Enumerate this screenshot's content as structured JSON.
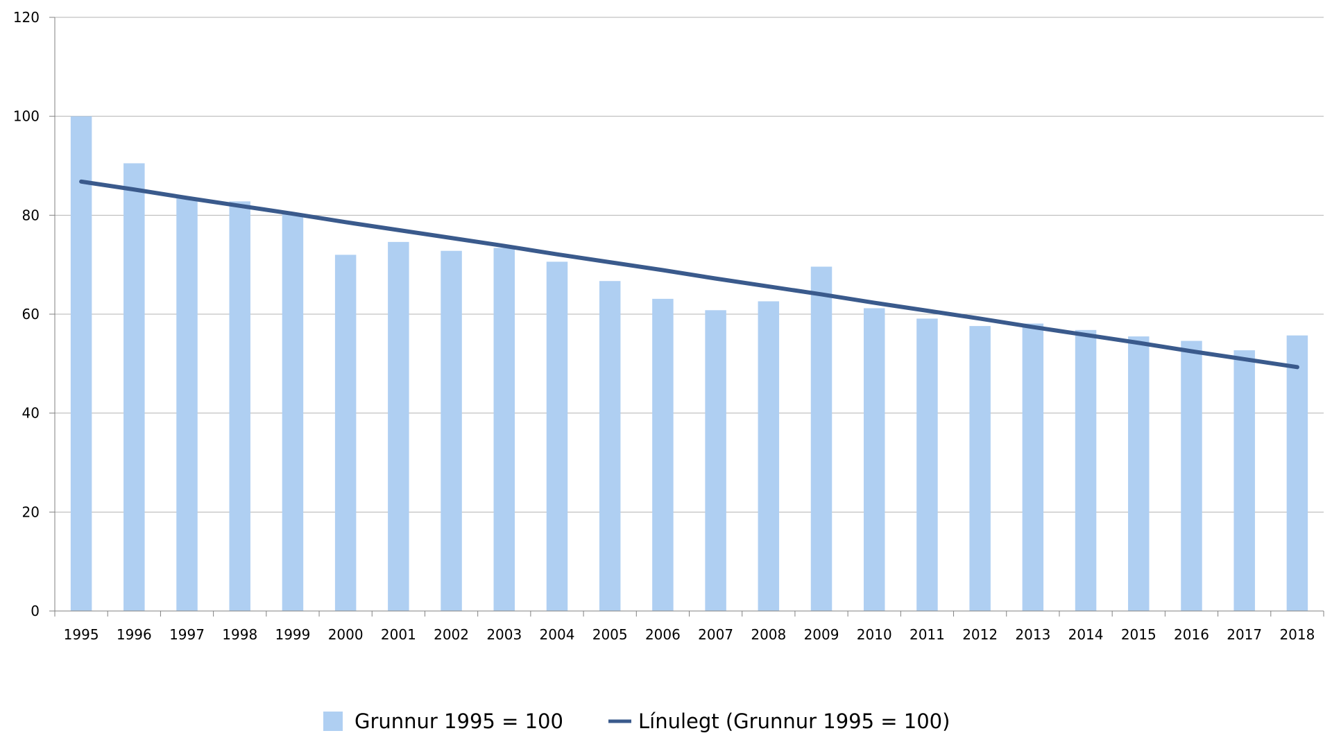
{
  "chart_data": {
    "type": "bar",
    "categories": [
      "1995",
      "1996",
      "1997",
      "1998",
      "1999",
      "2000",
      "2001",
      "2002",
      "2003",
      "2004",
      "2005",
      "2006",
      "2007",
      "2008",
      "2009",
      "2010",
      "2011",
      "2012",
      "2013",
      "2014",
      "2015",
      "2016",
      "2017",
      "2018"
    ],
    "series": [
      {
        "name": "Grunnur 1995 = 100",
        "type": "bar",
        "color": "#afcff2",
        "values": [
          100,
          90.5,
          83.5,
          82.8,
          80.2,
          72.0,
          74.6,
          72.8,
          73.4,
          70.6,
          66.7,
          63.1,
          60.8,
          62.6,
          69.6,
          61.2,
          59.1,
          57.6,
          58.1,
          56.8,
          55.5,
          54.6,
          52.7,
          55.7
        ]
      },
      {
        "name": "Línulegt (Grunnur 1995 = 100)",
        "type": "line",
        "color": "#3a5a8c",
        "values": [
          86.8,
          85.2,
          83.5,
          81.9,
          80.3,
          78.6,
          77.0,
          75.4,
          73.8,
          72.1,
          70.5,
          68.9,
          67.2,
          65.6,
          64.0,
          62.3,
          60.7,
          59.1,
          57.4,
          55.8,
          54.2,
          52.5,
          50.9,
          49.3
        ]
      }
    ],
    "ylim": [
      0,
      120
    ],
    "yticks": [
      0,
      20,
      40,
      60,
      80,
      100,
      120
    ],
    "grid": true,
    "legend": "bottom-center",
    "title": "",
    "xlabel": "",
    "ylabel": ""
  }
}
